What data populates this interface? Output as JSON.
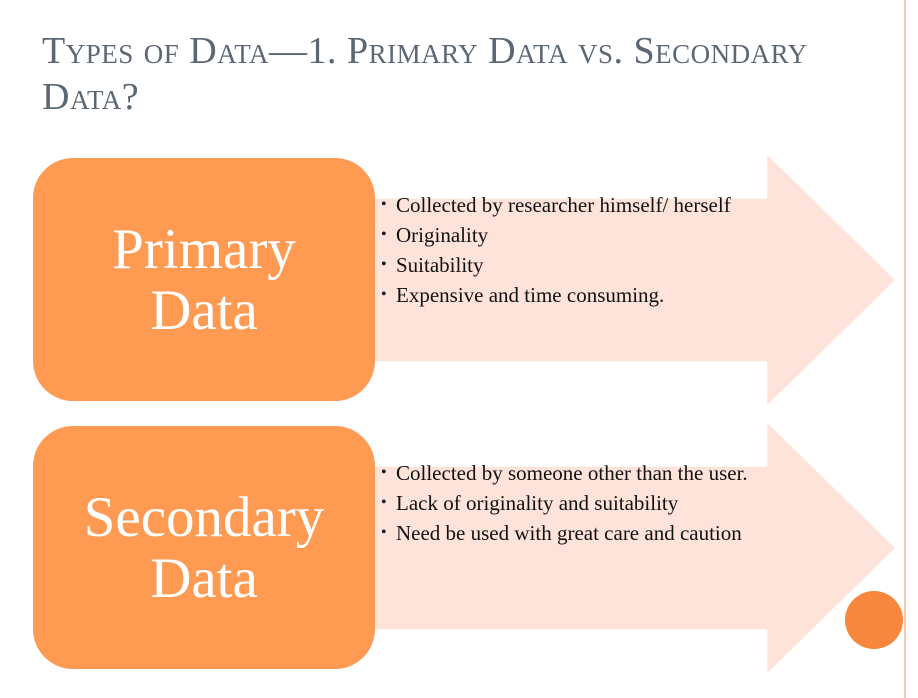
{
  "slide": {
    "title": "Types of Data—1. Primary Data vs. Secondary Data?",
    "colors": {
      "title": "#5c6774",
      "box": "#fe9a52",
      "arrow": "#fde3d9",
      "accent_circle": "#f8873e"
    },
    "rows": [
      {
        "label_lines": [
          "Primary",
          "Data"
        ],
        "bullets": [
          "Collected by researcher himself/ herself",
          "Originality",
          "Suitability",
          "Expensive and time consuming."
        ]
      },
      {
        "label_lines": [
          "Secondary",
          "Data"
        ],
        "bullets": [
          "Collected by someone other than the user.",
          "Lack of originality and suitability",
          "Need be used with great care and caution"
        ]
      }
    ]
  }
}
